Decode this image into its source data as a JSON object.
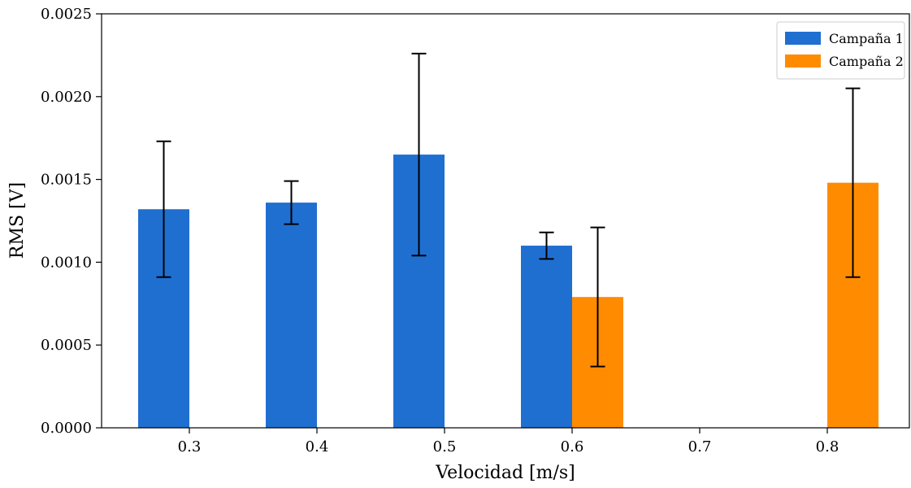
{
  "chart_data": {
    "type": "bar",
    "title": "",
    "xlabel": "Velocidad [m/s]",
    "ylabel": "RMS [V]",
    "categories": [
      "0.3",
      "0.4",
      "0.5",
      "0.6",
      "0.7",
      "0.8"
    ],
    "ylim": [
      0,
      0.0025
    ],
    "yticks": [
      "0.0000",
      "0.0005",
      "0.0010",
      "0.0015",
      "0.0020",
      "0.0025"
    ],
    "grid": false,
    "legend_position": "top-right",
    "series": [
      {
        "name": "Campaña 1",
        "color": "#1f6fd1",
        "values": [
          0.00132,
          0.00136,
          0.00165,
          0.0011,
          0,
          0
        ],
        "errors": [
          0.00041,
          0.00013,
          0.00061,
          8e-05,
          null,
          null
        ]
      },
      {
        "name": "Campaña 2",
        "color": "#ff8c00",
        "values": [
          0,
          0,
          0,
          0.00079,
          0,
          0.00148
        ],
        "errors": [
          null,
          null,
          null,
          0.00042,
          null,
          0.00057
        ]
      }
    ]
  }
}
